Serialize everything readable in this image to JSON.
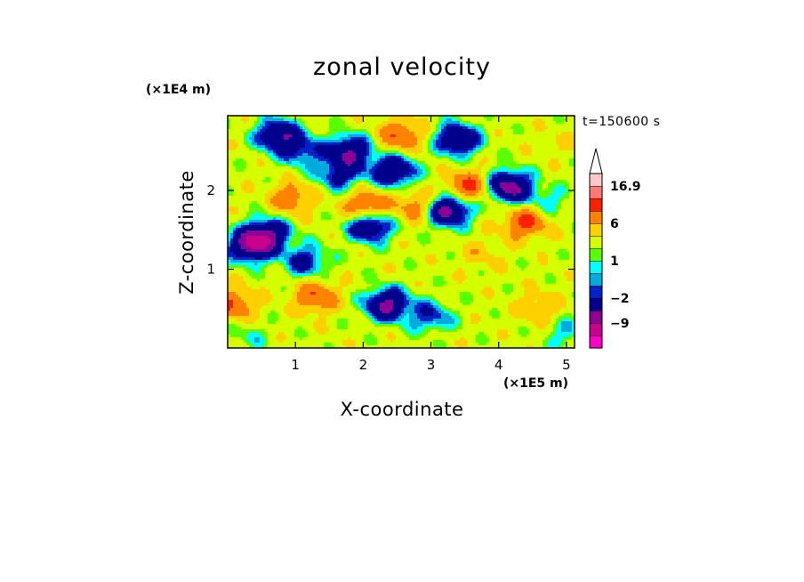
{
  "chart_data": {
    "type": "heatmap",
    "title": "zonal velocity",
    "xlabel": "X-coordinate",
    "ylabel": "Z-coordinate",
    "x_unit_label": "(×1E5 m)",
    "y_unit_label": "(×1E4 m)",
    "annotation": "t=150600 s",
    "xlim": [
      0,
      5.12
    ],
    "ylim": [
      0,
      2.95
    ],
    "x_ticks": [
      1,
      2,
      3,
      4,
      5
    ],
    "y_ticks": [
      1,
      2
    ],
    "x_tick_labels": [
      "1",
      "2",
      "3",
      "4",
      "5"
    ],
    "y_tick_labels": [
      "1",
      "2"
    ],
    "colorbar": {
      "levels": [
        -15,
        -12,
        -9,
        -6,
        -2,
        -1,
        0,
        1,
        2,
        4,
        6,
        9,
        12,
        16.9
      ],
      "tick_values": [
        16.9,
        6,
        1,
        -2,
        -9
      ],
      "tick_labels": [
        "16.9",
        "6",
        "1",
        "−2",
        "−9"
      ],
      "extend": "max",
      "colors": [
        "#ff00c8",
        "#c8008c",
        "#8c0096",
        "#00008c",
        "#0022c8",
        "#00aadc",
        "#00ffff",
        "#5aff00",
        "#d4ff00",
        "#ffd000",
        "#ff8200",
        "#ff2000",
        "#ff7878",
        "#ffc8c8"
      ]
    },
    "features": [
      {
        "x": 0.08,
        "z": 0.55,
        "amp": 6
      },
      {
        "x": 0.35,
        "z": 1.3,
        "amp": -11
      },
      {
        "x": 0.6,
        "z": 1.45,
        "amp": -8
      },
      {
        "x": 0.75,
        "z": 2.7,
        "amp": -9
      },
      {
        "x": 0.95,
        "z": 1.9,
        "amp": 5
      },
      {
        "x": 1.1,
        "z": 2.5,
        "amp": -5
      },
      {
        "x": 1.15,
        "z": 1.1,
        "amp": -6
      },
      {
        "x": 1.3,
        "z": 0.65,
        "amp": 6
      },
      {
        "x": 1.65,
        "z": 2.2,
        "amp": -6
      },
      {
        "x": 1.8,
        "z": 2.5,
        "amp": -9
      },
      {
        "x": 2.05,
        "z": 1.8,
        "amp": 7
      },
      {
        "x": 2.1,
        "z": 1.55,
        "amp": -9
      },
      {
        "x": 2.35,
        "z": 0.55,
        "amp": -10
      },
      {
        "x": 2.45,
        "z": 2.25,
        "amp": -9
      },
      {
        "x": 2.55,
        "z": 2.7,
        "amp": 6
      },
      {
        "x": 2.8,
        "z": 1.8,
        "amp": 5
      },
      {
        "x": 3.0,
        "z": 0.4,
        "amp": -5
      },
      {
        "x": 3.25,
        "z": 1.75,
        "amp": -11
      },
      {
        "x": 3.4,
        "z": 2.65,
        "amp": -9
      },
      {
        "x": 3.55,
        "z": 2.05,
        "amp": 7
      },
      {
        "x": 3.75,
        "z": 1.2,
        "amp": 2
      },
      {
        "x": 4.15,
        "z": 2.05,
        "amp": -11
      },
      {
        "x": 4.4,
        "z": 1.6,
        "amp": 7
      },
      {
        "x": 4.7,
        "z": 1.85,
        "amp": -3
      },
      {
        "x": 4.6,
        "z": 0.5,
        "amp": 3
      },
      {
        "x": 4.9,
        "z": 2.6,
        "amp": 1
      },
      {
        "x": 5.0,
        "z": 0.2,
        "amp": -3
      },
      {
        "x": 0.3,
        "z": 0.15,
        "amp": -2
      }
    ]
  }
}
